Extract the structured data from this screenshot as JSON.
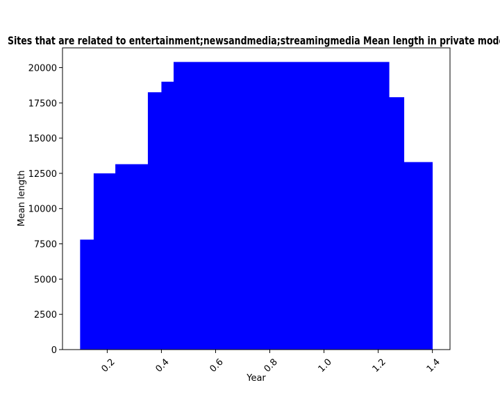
{
  "chart_data": {
    "type": "bar",
    "title": "Sites that are related to entertainment;newsandmedia;streamingmedia Mean length in private mode",
    "xlabel": "Year",
    "ylabel": "Mean length",
    "xlim": [
      0.035,
      1.465
    ],
    "ylim": [
      0,
      21400
    ],
    "grid": false,
    "legend": "none",
    "bar_color": "#0000ff",
    "xticks": [
      0.2,
      0.4,
      0.6,
      0.8,
      1.0,
      1.2,
      1.4
    ],
    "xtick_labels": [
      "0.2",
      "0.4",
      "0.6",
      "0.8",
      "1.0",
      "1.2",
      "1.4"
    ],
    "yticks": [
      0,
      2500,
      5000,
      7500,
      10000,
      12500,
      15000,
      17500,
      20000
    ],
    "ytick_labels": [
      "0",
      "2500",
      "5000",
      "7500",
      "10000",
      "12500",
      "15000",
      "17500",
      "20000"
    ],
    "bars": [
      {
        "x_start": 0.1,
        "x_end": 0.15,
        "value": 7800
      },
      {
        "x_start": 0.15,
        "x_end": 0.23,
        "value": 12500
      },
      {
        "x_start": 0.23,
        "x_end": 0.35,
        "value": 13150
      },
      {
        "x_start": 0.35,
        "x_end": 0.4,
        "value": 18250
      },
      {
        "x_start": 0.4,
        "x_end": 0.445,
        "value": 19000
      },
      {
        "x_start": 0.445,
        "x_end": 1.24,
        "value": 20400
      },
      {
        "x_start": 1.24,
        "x_end": 1.295,
        "value": 17900
      },
      {
        "x_start": 1.295,
        "x_end": 1.4,
        "value": 13300
      }
    ]
  }
}
